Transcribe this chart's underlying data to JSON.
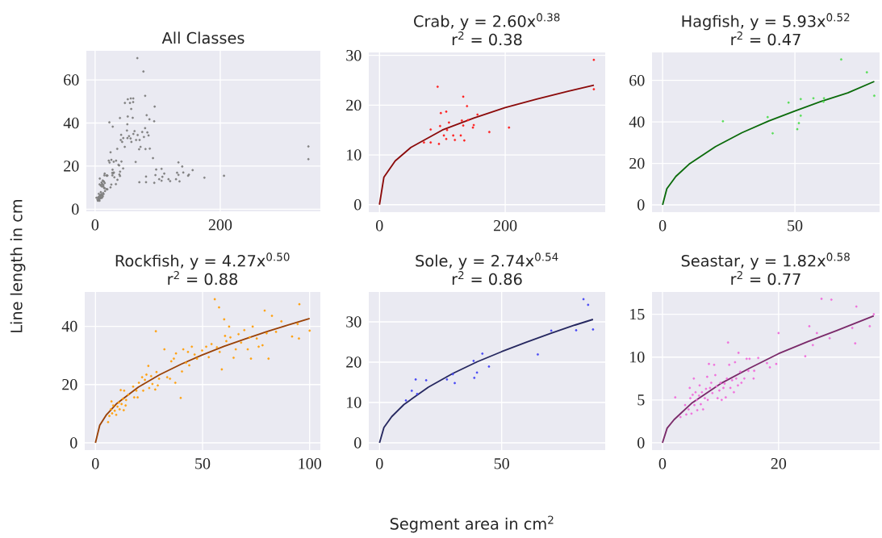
{
  "chart_data": [
    {
      "type": "scatter",
      "title": "All Classes",
      "ylabel": "Line length in cm",
      "xlim": [
        -14,
        360
      ],
      "ylim": [
        -1,
        73.5
      ],
      "xticks": [
        0,
        200
      ],
      "yticks": [
        0,
        20,
        40,
        60
      ],
      "grid": true,
      "marker": "circle",
      "series": [
        {
          "color": "#808080",
          "x": [
            70.7,
            81.4,
            81.4,
            92.5,
            96.4,
            97.6,
            94.6,
            102.4,
            106.2,
            106.2,
            107.5,
            110.5,
            119.9,
            117.3,
            129.3,
            131,
            133.2,
            133.2,
            134.9,
            139.2,
            140.9,
            148.6,
            149.9,
            155.9,
            174.7,
            206,
            340.9,
            340.9,
            22.8,
            39.7,
            41.6,
            47.6,
            50.9,
            51.5,
            52.2,
            52.2,
            57,
            60.8,
            61,
            67.5,
            77.2,
            80,
            10.8,
            13.2,
            14.8,
            15.4,
            19.1,
            27.6,
            30,
            30.8,
            38.5,
            38.8,
            39.9,
            42.1,
            44.8,
            64.8,
            70.3,
            80.5,
            83.5,
            85.4,
            87.4,
            5.9,
            7.2,
            7.5,
            9.0,
            10.3,
            11.3,
            12.2,
            13.2,
            14.1,
            15.3,
            18.1,
            19.7,
            21.8,
            23.1,
            24.7,
            26.0,
            27.9,
            28.2,
            29.7,
            33.5,
            35.4,
            37.3,
            39.8,
            41.0,
            43.2,
            45.0,
            47.4,
            51.7,
            54.2,
            56.7,
            58.0,
            60.1,
            61.1,
            63.0,
            65.5,
            68.0,
            71.1,
            72.6,
            75.3,
            78.0,
            79.9,
            82.4,
            86.8,
            94.4,
            95.2,
            55.7,
            57.7,
            2.2,
            3.9,
            4.5,
            4.8,
            5.2,
            5.5,
            6.3,
            6.6,
            7.0,
            7.5,
            7.8,
            8.2,
            8.6,
            9.1,
            9.5,
            10.0,
            10.5,
            10.9,
            11.3,
            11.7,
            12.3,
            12.7,
            13.1,
            13.6,
            14.5,
            15.0,
            15.8,
            18.0,
            19.6,
            24.6,
            25.9,
            27.4,
            29.1,
            33.2,
            35.7
          ],
          "values": [
            12.5,
            15.1,
            12.5,
            23.7,
            15.8,
            18.4,
            12.2,
            13.9,
            18.7,
            13.2,
            15.0,
            16.5,
            13.0,
            13.9,
            13.9,
            16.9,
            21.7,
            15.9,
            12.9,
            19.8,
            17.0,
            15.5,
            16.0,
            18.1,
            14.6,
            15.5,
            29.1,
            23.2,
            40.3,
            42.3,
            34.5,
            49.3,
            36.5,
            39.4,
            43.0,
            51.0,
            51.4,
            49.7,
            51.4,
            70.1,
            63.9,
            52.6,
            10.5,
            12.9,
            15.7,
            12.1,
            15.5,
            15.7,
            17.0,
            14.8,
            20.3,
            16.1,
            17.4,
            22.1,
            18.9,
            21.9,
            27.8,
            27.9,
            35.6,
            34.2,
            28.1,
            7.1,
            11.5,
            14.2,
            11.0,
            12.4,
            11.5,
            13.3,
            11.2,
            12.8,
            16.5,
            15.6,
            15.6,
            22.5,
            21.6,
            26.4,
            22.9,
            18.3,
            38.3,
            22.0,
            22.5,
            28.0,
            20.6,
            15.4,
            32.1,
            31.2,
            33.0,
            28.9,
            33.0,
            33.9,
            32.8,
            31.2,
            42.4,
            34.9,
            36.2,
            32.1,
            34.4,
            32.1,
            28.9,
            35.8,
            33.5,
            37.6,
            43.6,
            41.7,
            40.8,
            47.6,
            49.3,
            46.5,
            5.3,
            4.4,
            3.9,
            5.2,
            5.6,
            4.4,
            5.5,
            4.5,
            3.9,
            6.3,
            5.0,
            6.4,
            5.8,
            7.9,
            5.2,
            7.0,
            6.4,
            5.3,
            11.7,
            6.4,
            5.9,
            7.5,
            10.5,
            7.0,
            9.8,
            9.8,
            8.4,
            9.3,
            9.2,
            10.1,
            11.4,
            16.8,
            16.7,
            11.6,
            13.6
          ]
        }
      ]
    },
    {
      "type": "scatter",
      "title": "Crab, y = 2.60x$^{0.38}$",
      "subtitle": "r$^{2}$ = 0.38",
      "xlim": [
        -17,
        359
      ],
      "ylim": [
        -1.5,
        30.6
      ],
      "xticks": [
        0,
        200
      ],
      "yticks": [
        0,
        10,
        20,
        30
      ],
      "grid": true,
      "marker": "circle",
      "series": [
        {
          "color": "#ff2020",
          "x": [
            70.7,
            81.4,
            81.4,
            92.5,
            96.4,
            97.6,
            94.6,
            102.4,
            106.2,
            106.2,
            107.5,
            110.5,
            119.9,
            117.3,
            129.3,
            131,
            133.2,
            133.2,
            134.9,
            139.2,
            140.9,
            148.6,
            149.9,
            155.9,
            174.7,
            206,
            340.9,
            340.9
          ],
          "values": [
            12.5,
            15.1,
            12.5,
            23.7,
            15.8,
            18.4,
            12.2,
            13.9,
            18.7,
            13.2,
            15.0,
            16.5,
            13.0,
            13.9,
            13.9,
            16.9,
            21.7,
            15.9,
            12.9,
            19.8,
            17.0,
            15.5,
            16.0,
            18.1,
            14.6,
            15.5,
            29.1,
            23.2
          ]
        },
        {
          "type": "line",
          "marker": "none",
          "color": "#8b0a0a",
          "x": [
            0,
            7,
            25,
            50,
            100,
            150,
            200,
            250,
            300,
            341
          ],
          "values": [
            0,
            5.5,
            8.8,
            11.5,
            15.0,
            17.4,
            19.5,
            21.2,
            22.8,
            24.0
          ]
        }
      ]
    },
    {
      "type": "scatter",
      "title": "Hagfish, y = 5.93x$^{0.52}$",
      "subtitle": "r$^{2}$ = 0.47",
      "xlim": [
        -4,
        82
      ],
      "ylim": [
        -3.5,
        73.5
      ],
      "xticks": [
        0,
        50
      ],
      "yticks": [
        0,
        20,
        40,
        60
      ],
      "grid": true,
      "marker": "circle",
      "series": [
        {
          "color": "#55dd55",
          "x": [
            22.8,
            39.7,
            41.6,
            47.6,
            50.9,
            51.5,
            52.2,
            52.2,
            57,
            60.8,
            61,
            67.5,
            77.2,
            80
          ],
          "values": [
            40.3,
            42.3,
            34.5,
            49.3,
            36.5,
            39.4,
            43.0,
            51.0,
            51.4,
            49.7,
            51.4,
            70.1,
            63.9,
            52.6
          ]
        },
        {
          "type": "line",
          "marker": "none",
          "color": "#0b6b0b",
          "x": [
            0,
            1.6,
            5,
            10,
            20,
            30,
            40,
            50,
            60,
            70,
            80
          ],
          "values": [
            0,
            7.8,
            13.7,
            19.6,
            28.1,
            34.8,
            40.4,
            45.3,
            49.9,
            54.0,
            59.5
          ]
        }
      ]
    },
    {
      "type": "scatter",
      "title": "Rockfish, y = 4.27x$^{0.50}$",
      "subtitle": "r$^{2}$ = 0.88",
      "xlim": [
        -5,
        105
      ],
      "ylim": [
        -2.5,
        51.8
      ],
      "xticks": [
        0,
        50,
        100
      ],
      "yticks": [
        0,
        20,
        40
      ],
      "grid": true,
      "marker": "circle",
      "series": [
        {
          "color": "#ffa010",
          "x": [
            5.9,
            6.5,
            7.2,
            7.8,
            7.5,
            8.3,
            9.0,
            9.7,
            10.3,
            10.9,
            11.3,
            11.8,
            12.2,
            12.8,
            13.2,
            13.4,
            14.1,
            14.3,
            15.3,
            17.6,
            18.1,
            19.1,
            19.7,
            20.3,
            21.8,
            22.3,
            23.1,
            23.8,
            24.7,
            25.1,
            26.0,
            26.6,
            27.9,
            28.5,
            28.2,
            29.1,
            29.7,
            32.2,
            33.5,
            34.8,
            35.4,
            36.6,
            37.3,
            37.6,
            39.8,
            40.4,
            41.0,
            42.3,
            43.2,
            43.8,
            45.0,
            46.3,
            47.4,
            49.8,
            51.7,
            52.9,
            54.2,
            55.7,
            56.7,
            57.7,
            58.0,
            59.0,
            60.1,
            60.5,
            61.1,
            62.4,
            63.0,
            64.5,
            65.5,
            66.8,
            68.0,
            69.5,
            71.1,
            72.0,
            72.6,
            73.4,
            75.3,
            76.2,
            78.0,
            79.0,
            79.9,
            80.8,
            82.4,
            84.3,
            86.8,
            91.8,
            94.4,
            95.0,
            95.2,
            100.0
          ],
          "values": [
            7.1,
            9.2,
            11.5,
            10.1,
            14.2,
            12.8,
            11.0,
            9.6,
            12.4,
            13.8,
            11.5,
            18.1,
            13.3,
            15.1,
            11.2,
            17.9,
            12.8,
            14.7,
            16.5,
            19.3,
            15.6,
            17.9,
            15.6,
            20.6,
            22.5,
            17.9,
            21.6,
            23.4,
            26.4,
            18.8,
            22.9,
            20.2,
            18.3,
            24.3,
            38.3,
            19.7,
            22.0,
            32.1,
            22.5,
            22.0,
            28.0,
            28.9,
            20.6,
            30.7,
            15.4,
            24.5,
            32.1,
            27.5,
            31.2,
            26.6,
            33.0,
            30.3,
            28.9,
            31.7,
            33.0,
            29.4,
            33.9,
            49.3,
            32.8,
            46.5,
            31.2,
            25.2,
            42.4,
            36.7,
            34.9,
            39.9,
            36.2,
            29.2,
            32.1,
            37.3,
            34.4,
            38.7,
            32.1,
            36.2,
            28.9,
            39.9,
            35.8,
            33.0,
            33.5,
            45.4,
            37.6,
            28.9,
            43.6,
            38.1,
            41.7,
            36.5,
            40.8,
            35.8,
            47.6,
            38.5
          ]
        },
        {
          "type": "line",
          "marker": "none",
          "color": "#9a4208",
          "x": [
            0,
            2,
            5,
            10,
            20,
            30,
            40,
            50,
            60,
            70,
            80,
            90,
            100
          ],
          "values": [
            0,
            6.0,
            9.5,
            13.5,
            19.1,
            23.4,
            27.0,
            30.2,
            33.1,
            35.7,
            38.2,
            40.5,
            42.7
          ]
        }
      ]
    },
    {
      "type": "scatter",
      "title": "Sole, y = 2.74x$^{0.54}$",
      "subtitle": "r$^{2}$ = 0.86",
      "xlabel": "Segment area in cm$^{2}$",
      "xlim": [
        -4.4,
        92.4
      ],
      "ylim": [
        -1.8,
        37.4
      ],
      "xticks": [
        0,
        50
      ],
      "yticks": [
        0,
        10,
        20,
        30
      ],
      "grid": true,
      "marker": "circle",
      "series": [
        {
          "color": "#4a4af5",
          "x": [
            10.8,
            13.2,
            14.8,
            15.4,
            19.1,
            27.6,
            30,
            30.8,
            38.5,
            38.8,
            39.9,
            42.1,
            44.8,
            64.8,
            70.3,
            80.5,
            83.5,
            85.4,
            87.4
          ],
          "values": [
            10.5,
            12.9,
            15.7,
            12.1,
            15.5,
            15.7,
            17.0,
            14.8,
            20.3,
            16.1,
            17.4,
            22.1,
            18.9,
            21.9,
            27.8,
            27.9,
            35.6,
            34.2,
            28.1
          ]
        },
        {
          "type": "line",
          "marker": "none",
          "color": "#262860",
          "x": [
            0,
            1.8,
            5,
            10,
            20,
            30,
            40,
            50,
            60,
            70,
            80,
            87.4
          ],
          "values": [
            0,
            3.8,
            6.5,
            9.5,
            13.8,
            17.2,
            20.1,
            22.6,
            24.9,
            27.1,
            29.2,
            30.6
          ]
        }
      ]
    },
    {
      "type": "scatter",
      "title": "Seastar, y = 1.82x$^{0.58}$",
      "subtitle": "r$^{2}$ = 0.77",
      "xlim": [
        -1.8,
        37.4
      ],
      "ylim": [
        -0.85,
        17.6
      ],
      "xticks": [
        0,
        20
      ],
      "yticks": [
        0,
        5,
        10,
        15
      ],
      "grid": true,
      "marker": "circle",
      "series": [
        {
          "color": "#f070dc",
          "x": [
            2.2,
            3.1,
            3.9,
            4.1,
            4.5,
            4.7,
            4.8,
            5.0,
            5.2,
            5.4,
            5.5,
            5.7,
            5.9,
            6.0,
            6.3,
            6.4,
            6.6,
            6.8,
            7.0,
            7.3,
            7.5,
            7.7,
            7.8,
            8.0,
            8.2,
            8.4,
            8.6,
            8.9,
            9.1,
            9.3,
            9.5,
            9.8,
            10.0,
            10.2,
            10.5,
            10.7,
            10.9,
            11.1,
            11.3,
            11.5,
            11.7,
            12.0,
            12.3,
            12.5,
            12.7,
            13.0,
            13.1,
            13.4,
            13.6,
            14.1,
            14.5,
            14.8,
            15.0,
            15.7,
            15.8,
            16.5,
            18.0,
            18.5,
            19.6,
            20.0,
            24.6,
            25.3,
            25.9,
            26.6,
            27.4,
            28.8,
            29.1,
            32.7,
            33.2,
            33.4,
            35.7,
            36.4
          ],
          "values": [
            5.3,
            3.0,
            4.4,
            3.3,
            3.9,
            6.4,
            5.2,
            3.4,
            5.6,
            7.5,
            4.4,
            5.9,
            5.0,
            3.8,
            5.5,
            6.7,
            4.5,
            5.9,
            3.9,
            5.2,
            6.3,
            7.7,
            5.0,
            9.2,
            6.4,
            7.0,
            5.8,
            9.1,
            7.9,
            6.6,
            5.2,
            6.1,
            7.0,
            5.0,
            6.4,
            6.9,
            5.3,
            7.5,
            11.7,
            9.1,
            6.4,
            7.3,
            5.9,
            9.4,
            7.5,
            6.7,
            10.5,
            8.3,
            7.0,
            7.5,
            9.8,
            8.4,
            9.8,
            7.5,
            8.4,
            9.9,
            9.3,
            8.8,
            9.2,
            12.8,
            10.1,
            13.6,
            11.4,
            12.8,
            16.8,
            12.2,
            16.7,
            13.4,
            11.6,
            15.9,
            13.6,
            15.0
          ]
        },
        {
          "type": "line",
          "marker": "none",
          "color": "#7a2a6a",
          "x": [
            0,
            0.8,
            2,
            5,
            10,
            15,
            20,
            25,
            30,
            36.4
          ],
          "values": [
            0,
            1.7,
            2.7,
            4.6,
            6.9,
            8.7,
            10.4,
            11.8,
            13.1,
            14.8
          ]
        }
      ]
    }
  ]
}
